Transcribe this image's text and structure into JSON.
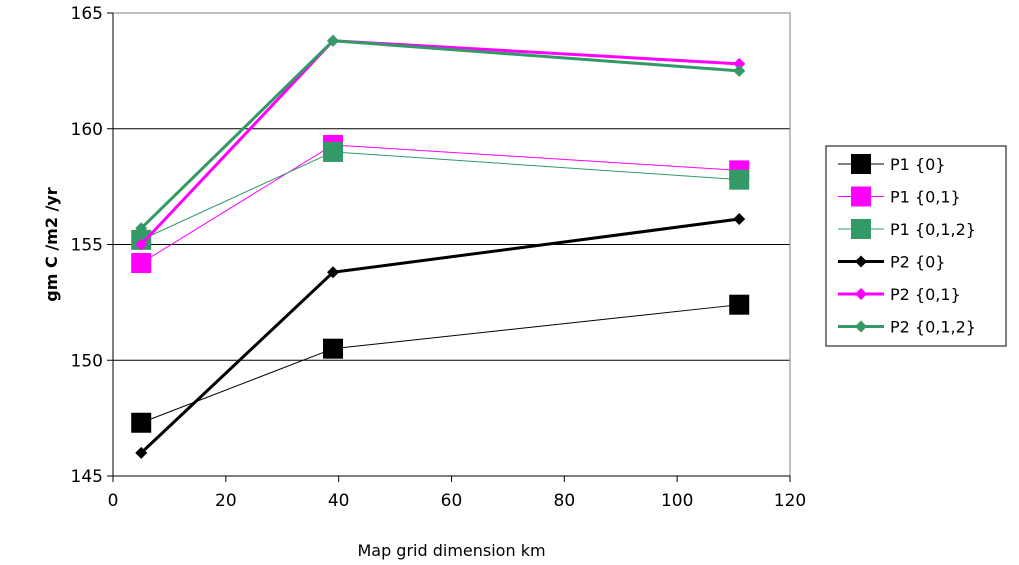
{
  "chart_data": {
    "type": "line",
    "xlabel": "Map grid dimension km",
    "ylabel": "gm C /m2 /yr",
    "xlim": [
      0,
      120
    ],
    "ylim": [
      145,
      165
    ],
    "x_ticks": [
      "0",
      "20",
      "40",
      "60",
      "80",
      "100",
      "120"
    ],
    "y_ticks": [
      "145",
      "150",
      "155",
      "160",
      "165"
    ],
    "grid": "horizontal",
    "legend_position": "right",
    "x": [
      5,
      39,
      111
    ],
    "series": [
      {
        "name": "P1 {0}",
        "values": [
          147.3,
          150.5,
          152.4
        ],
        "color": "#000000",
        "marker": "square",
        "width": 1
      },
      {
        "name": "P1 {0,1}",
        "values": [
          154.2,
          159.3,
          158.2
        ],
        "color": "#ff00ff",
        "marker": "square",
        "width": 1
      },
      {
        "name": "P1 {0,1,2}",
        "values": [
          155.2,
          159.0,
          157.8
        ],
        "color": "#339966",
        "marker": "square",
        "width": 1
      },
      {
        "name": "P2 {0}",
        "values": [
          146.0,
          153.8,
          156.1
        ],
        "color": "#000000",
        "marker": "diamond",
        "width": 3
      },
      {
        "name": "P2 {0,1}",
        "values": [
          155.0,
          163.8,
          162.8
        ],
        "color": "#ff00ff",
        "marker": "diamond",
        "width": 3
      },
      {
        "name": "P2 {0,1,2}",
        "values": [
          155.7,
          163.8,
          162.5
        ],
        "color": "#339966",
        "marker": "diamond",
        "width": 3
      }
    ]
  }
}
